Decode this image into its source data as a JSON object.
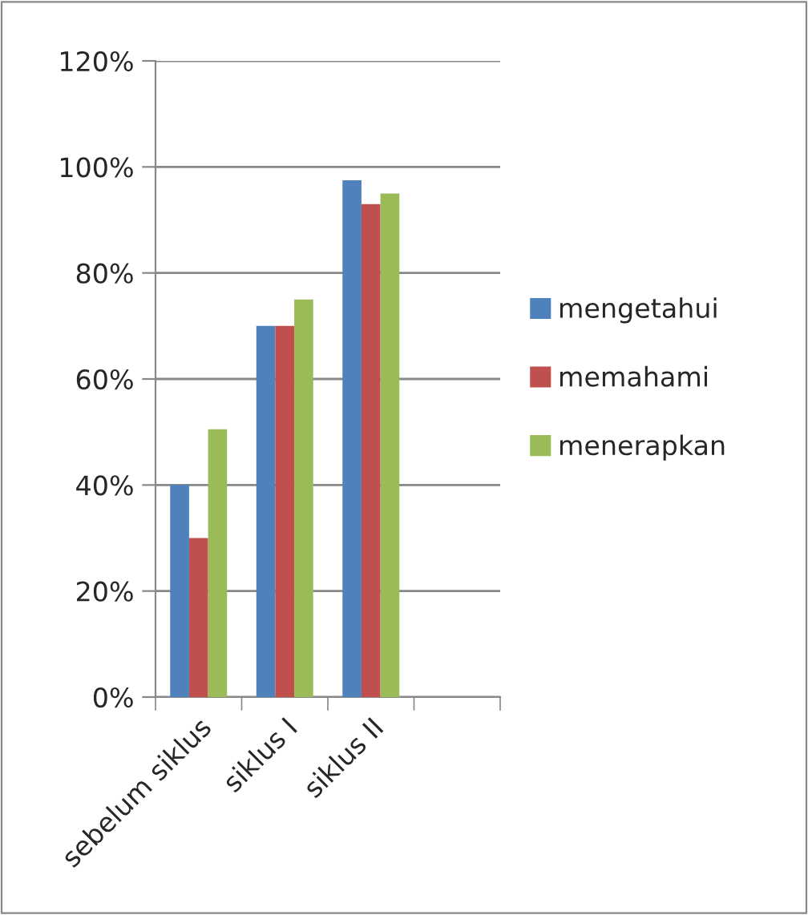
{
  "chart_data": {
    "type": "bar",
    "categories": [
      "sebelum siklus",
      "siklus I",
      "siklus II",
      null
    ],
    "series": [
      {
        "name": "mengetahui",
        "color": "#4f81bd",
        "values": [
          40,
          70,
          97.5,
          null
        ]
      },
      {
        "name": "memahami",
        "color": "#c0504d",
        "values": [
          30,
          70,
          93,
          null
        ]
      },
      {
        "name": "menerapkan",
        "color": "#9bbb59",
        "values": [
          50.5,
          75,
          95,
          null
        ]
      }
    ],
    "ylim": [
      0,
      120
    ],
    "yticks": [
      {
        "value": 0,
        "label": "0%"
      },
      {
        "value": 20,
        "label": "20%"
      },
      {
        "value": 40,
        "label": "40%"
      },
      {
        "value": 60,
        "label": "60%"
      },
      {
        "value": 80,
        "label": "80%"
      },
      {
        "value": 100,
        "label": "100%"
      },
      {
        "value": 120,
        "label": "120%"
      }
    ],
    "grid": "y",
    "legend": "right"
  }
}
